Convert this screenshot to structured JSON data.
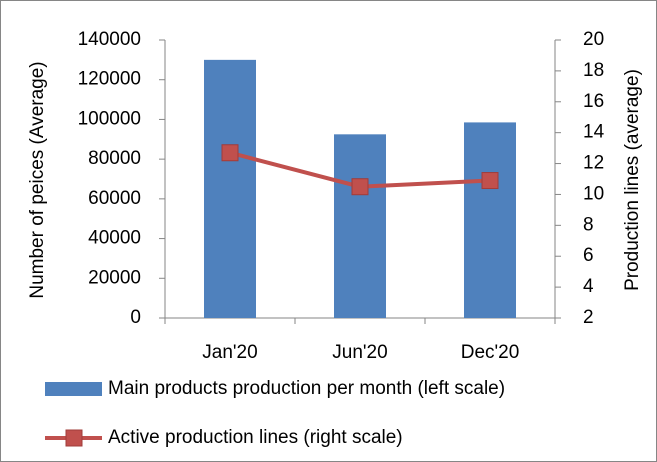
{
  "chart_data": {
    "type": "bar",
    "categories": [
      "Jan'20",
      "Jun'20",
      "Dec'20"
    ],
    "series": [
      {
        "name": "Main products production per month (left scale)",
        "color": "#4f81bd",
        "type": "bar",
        "values": [
          130000,
          92500,
          98500
        ]
      },
      {
        "name": "Active production lines (right scale)",
        "color": "#c0504d",
        "type": "line",
        "axis": "y2",
        "values": [
          12.7,
          10.5,
          10.9
        ]
      }
    ],
    "ylabel": "Number of peices (Average)",
    "y2label": "Production lines (average)",
    "ylim": [
      0,
      140000
    ],
    "yticks": [
      0,
      20000,
      40000,
      60000,
      80000,
      100000,
      120000,
      140000
    ],
    "y2lim": [
      2,
      20
    ],
    "y2ticks": [
      2,
      4,
      6,
      8,
      10,
      12,
      14,
      16,
      18,
      20
    ],
    "legend": "bottom"
  }
}
